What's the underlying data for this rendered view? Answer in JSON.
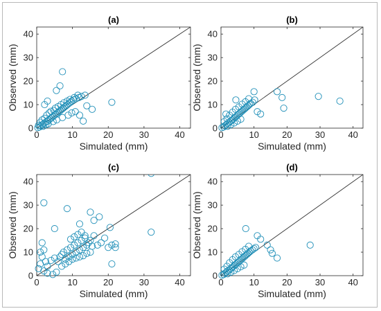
{
  "chart_data": [
    {
      "type": "scatter",
      "title": "(a)",
      "xlabel": "Simulated (mm)",
      "ylabel": "Observed (mm)",
      "xlim": [
        0,
        43
      ],
      "ylim": [
        0,
        43
      ],
      "xticks": [
        0,
        10,
        20,
        30,
        40
      ],
      "yticks": [
        0,
        10,
        20,
        30,
        40
      ],
      "reference_line": "1:1",
      "marker_color": "#1f8fb8",
      "x": [
        0.3,
        0.8,
        1.2,
        1.6,
        2.0,
        2.5,
        3.0,
        3.4,
        3.8,
        4.2,
        4.6,
        5.0,
        5.4,
        5.8,
        6.2,
        6.6,
        7.0,
        7.4,
        7.8,
        8.2,
        8.6,
        9.0,
        9.4,
        9.8,
        10.3,
        11.0,
        11.8,
        12.5,
        13.5,
        1.0,
        1.5,
        2.2,
        2.8,
        3.5,
        4.0,
        5.2,
        6.0,
        6.8,
        7.6,
        8.5,
        9.3,
        10.5,
        3.2,
        4.6,
        0.5,
        1.8,
        2.6,
        5.6,
        7.2,
        8.8,
        9.8,
        4.8,
        14.0,
        21.0,
        7.2,
        3.0,
        5.5,
        2.2,
        6.5,
        15.5,
        13.0,
        12.0,
        10.8,
        11.5
      ],
      "y": [
        0.2,
        0.5,
        1.0,
        1.5,
        2.0,
        2.5,
        3.0,
        3.5,
        4.0,
        4.5,
        5.0,
        5.5,
        6.0,
        6.5,
        7.0,
        7.5,
        8.0,
        8.5,
        9.0,
        9.5,
        10.0,
        10.5,
        11.0,
        11.5,
        12.0,
        12.5,
        13.0,
        13.5,
        14.0,
        2.5,
        3.5,
        4.2,
        5.5,
        6.5,
        7.2,
        8.5,
        9.2,
        10.0,
        10.8,
        11.5,
        12.2,
        13.0,
        1.8,
        2.8,
        1.2,
        0.8,
        1.5,
        3.5,
        4.5,
        5.5,
        6.5,
        7.5,
        9.5,
        11.0,
        24.0,
        11.5,
        16.0,
        10.0,
        18.0,
        8.0,
        3.0,
        5.5,
        7.0,
        14.0
      ]
    },
    {
      "type": "scatter",
      "title": "(b)",
      "xlabel": "Simulated (mm)",
      "ylabel": "Observed (mm)",
      "xlim": [
        0,
        43
      ],
      "ylim": [
        0,
        43
      ],
      "xticks": [
        0,
        10,
        20,
        30,
        40
      ],
      "yticks": [
        0,
        10,
        20,
        30,
        40
      ],
      "reference_line": "1:1",
      "marker_color": "#1f8fb8",
      "x": [
        0.3,
        0.8,
        1.2,
        1.6,
        2.0,
        2.5,
        3.0,
        3.4,
        3.8,
        4.2,
        4.6,
        5.0,
        5.4,
        5.8,
        6.2,
        6.6,
        7.0,
        7.4,
        7.8,
        8.2,
        8.6,
        9.0,
        9.6,
        10.2,
        1.0,
        1.8,
        2.6,
        3.5,
        4.4,
        5.4,
        6.4,
        7.4,
        8.4,
        2.0,
        3.0,
        4.0,
        5.0,
        6.0,
        11.0,
        12.0,
        10.0,
        17.0,
        19.0,
        29.5,
        36.0,
        18.5,
        1.5,
        4.5
      ],
      "y": [
        0.2,
        0.5,
        1.0,
        1.5,
        2.0,
        2.5,
        3.0,
        3.5,
        4.0,
        4.5,
        5.0,
        5.5,
        6.0,
        6.5,
        7.0,
        7.5,
        8.0,
        8.5,
        9.0,
        9.5,
        10.0,
        10.5,
        11.0,
        12.0,
        2.8,
        4.0,
        5.5,
        6.8,
        8.0,
        9.0,
        10.2,
        11.2,
        12.5,
        0.8,
        1.5,
        2.2,
        3.0,
        3.8,
        7.0,
        6.0,
        15.5,
        15.5,
        8.5,
        13.5,
        11.5,
        13.0,
        6.0,
        12.0
      ]
    },
    {
      "type": "scatter",
      "title": "(c)",
      "xlabel": "Simulated (mm)",
      "ylabel": "Observed (mm)",
      "xlim": [
        0,
        43
      ],
      "ylim": [
        0,
        43
      ],
      "xticks": [
        0,
        10,
        20,
        30,
        40
      ],
      "yticks": [
        0,
        10,
        20,
        30,
        40
      ],
      "reference_line": "1:1",
      "marker_color": "#1f8fb8",
      "x": [
        0.5,
        1.0,
        1.5,
        2.0,
        2.5,
        3.0,
        4.0,
        5.0,
        6.0,
        6.5,
        7.0,
        7.5,
        8.0,
        8.5,
        9.0,
        9.5,
        10.0,
        10.5,
        11.0,
        11.5,
        12.0,
        12.5,
        13.0,
        13.5,
        14.0,
        14.5,
        15.0,
        15.5,
        16.0,
        17.0,
        18.0,
        19.0,
        20.0,
        21.0,
        22.0,
        7.0,
        8.0,
        9.0,
        10.0,
        11.0,
        12.0,
        13.0,
        14.0,
        15.0,
        9.5,
        10.5,
        11.5,
        12.5,
        13.5,
        1.0,
        2.0,
        3.0,
        1.5,
        4.5,
        5.5,
        32.0,
        32.0,
        2.0,
        8.5,
        15.0,
        17.5,
        20.5,
        22.0,
        21.0,
        5.0,
        16.0,
        12.0
      ],
      "y": [
        3.0,
        5.0,
        8.0,
        2.0,
        6.0,
        4.0,
        6.5,
        7.5,
        6.0,
        8.0,
        9.0,
        10.0,
        7.0,
        11.0,
        8.0,
        12.0,
        9.0,
        13.0,
        10.0,
        14.0,
        11.0,
        15.0,
        12.0,
        16.0,
        13.0,
        14.0,
        15.0,
        12.5,
        17.0,
        13.0,
        14.0,
        16.0,
        12.0,
        13.0,
        13.5,
        4.0,
        5.0,
        6.0,
        7.0,
        7.5,
        8.0,
        8.5,
        9.5,
        10.0,
        15.5,
        16.5,
        17.5,
        18.5,
        17.0,
        10.0,
        11.0,
        1.0,
        14.0,
        0.5,
        1.5,
        43.5,
        18.5,
        31.0,
        28.5,
        27.0,
        25.0,
        20.5,
        12.0,
        5.0,
        20.0,
        23.5,
        22.0
      ]
    },
    {
      "type": "scatter",
      "title": "(d)",
      "xlabel": "Simulated (mm)",
      "ylabel": "Observed (mm)",
      "xlim": [
        0,
        43
      ],
      "ylim": [
        0,
        43
      ],
      "xticks": [
        0,
        10,
        20,
        30,
        40
      ],
      "yticks": [
        0,
        10,
        20,
        30,
        40
      ],
      "reference_line": "1:1",
      "marker_color": "#1f8fb8",
      "x": [
        0.3,
        0.8,
        1.2,
        1.6,
        2.0,
        2.5,
        3.0,
        3.4,
        3.8,
        4.2,
        4.6,
        5.0,
        5.4,
        5.8,
        6.2,
        6.6,
        7.0,
        7.4,
        7.8,
        8.2,
        8.6,
        9.0,
        9.5,
        10.0,
        10.5,
        1.0,
        1.8,
        2.6,
        3.5,
        4.4,
        5.4,
        6.4,
        7.4,
        8.4,
        2.0,
        3.0,
        4.0,
        5.0,
        6.0,
        7.0,
        14.0,
        15.0,
        15.5,
        17.0,
        27.0,
        7.5,
        11.0,
        12.0
      ],
      "y": [
        0.2,
        0.5,
        1.0,
        1.5,
        2.0,
        2.5,
        3.0,
        3.5,
        4.0,
        4.5,
        5.0,
        5.5,
        6.0,
        6.5,
        7.0,
        7.5,
        8.0,
        8.5,
        9.0,
        9.5,
        10.0,
        10.5,
        11.0,
        11.5,
        12.0,
        2.8,
        4.0,
        5.5,
        6.8,
        8.0,
        9.0,
        10.2,
        11.2,
        12.5,
        0.8,
        1.5,
        2.2,
        3.0,
        3.8,
        4.5,
        13.0,
        11.0,
        9.5,
        7.5,
        13.0,
        20.0,
        17.0,
        15.5
      ]
    }
  ]
}
